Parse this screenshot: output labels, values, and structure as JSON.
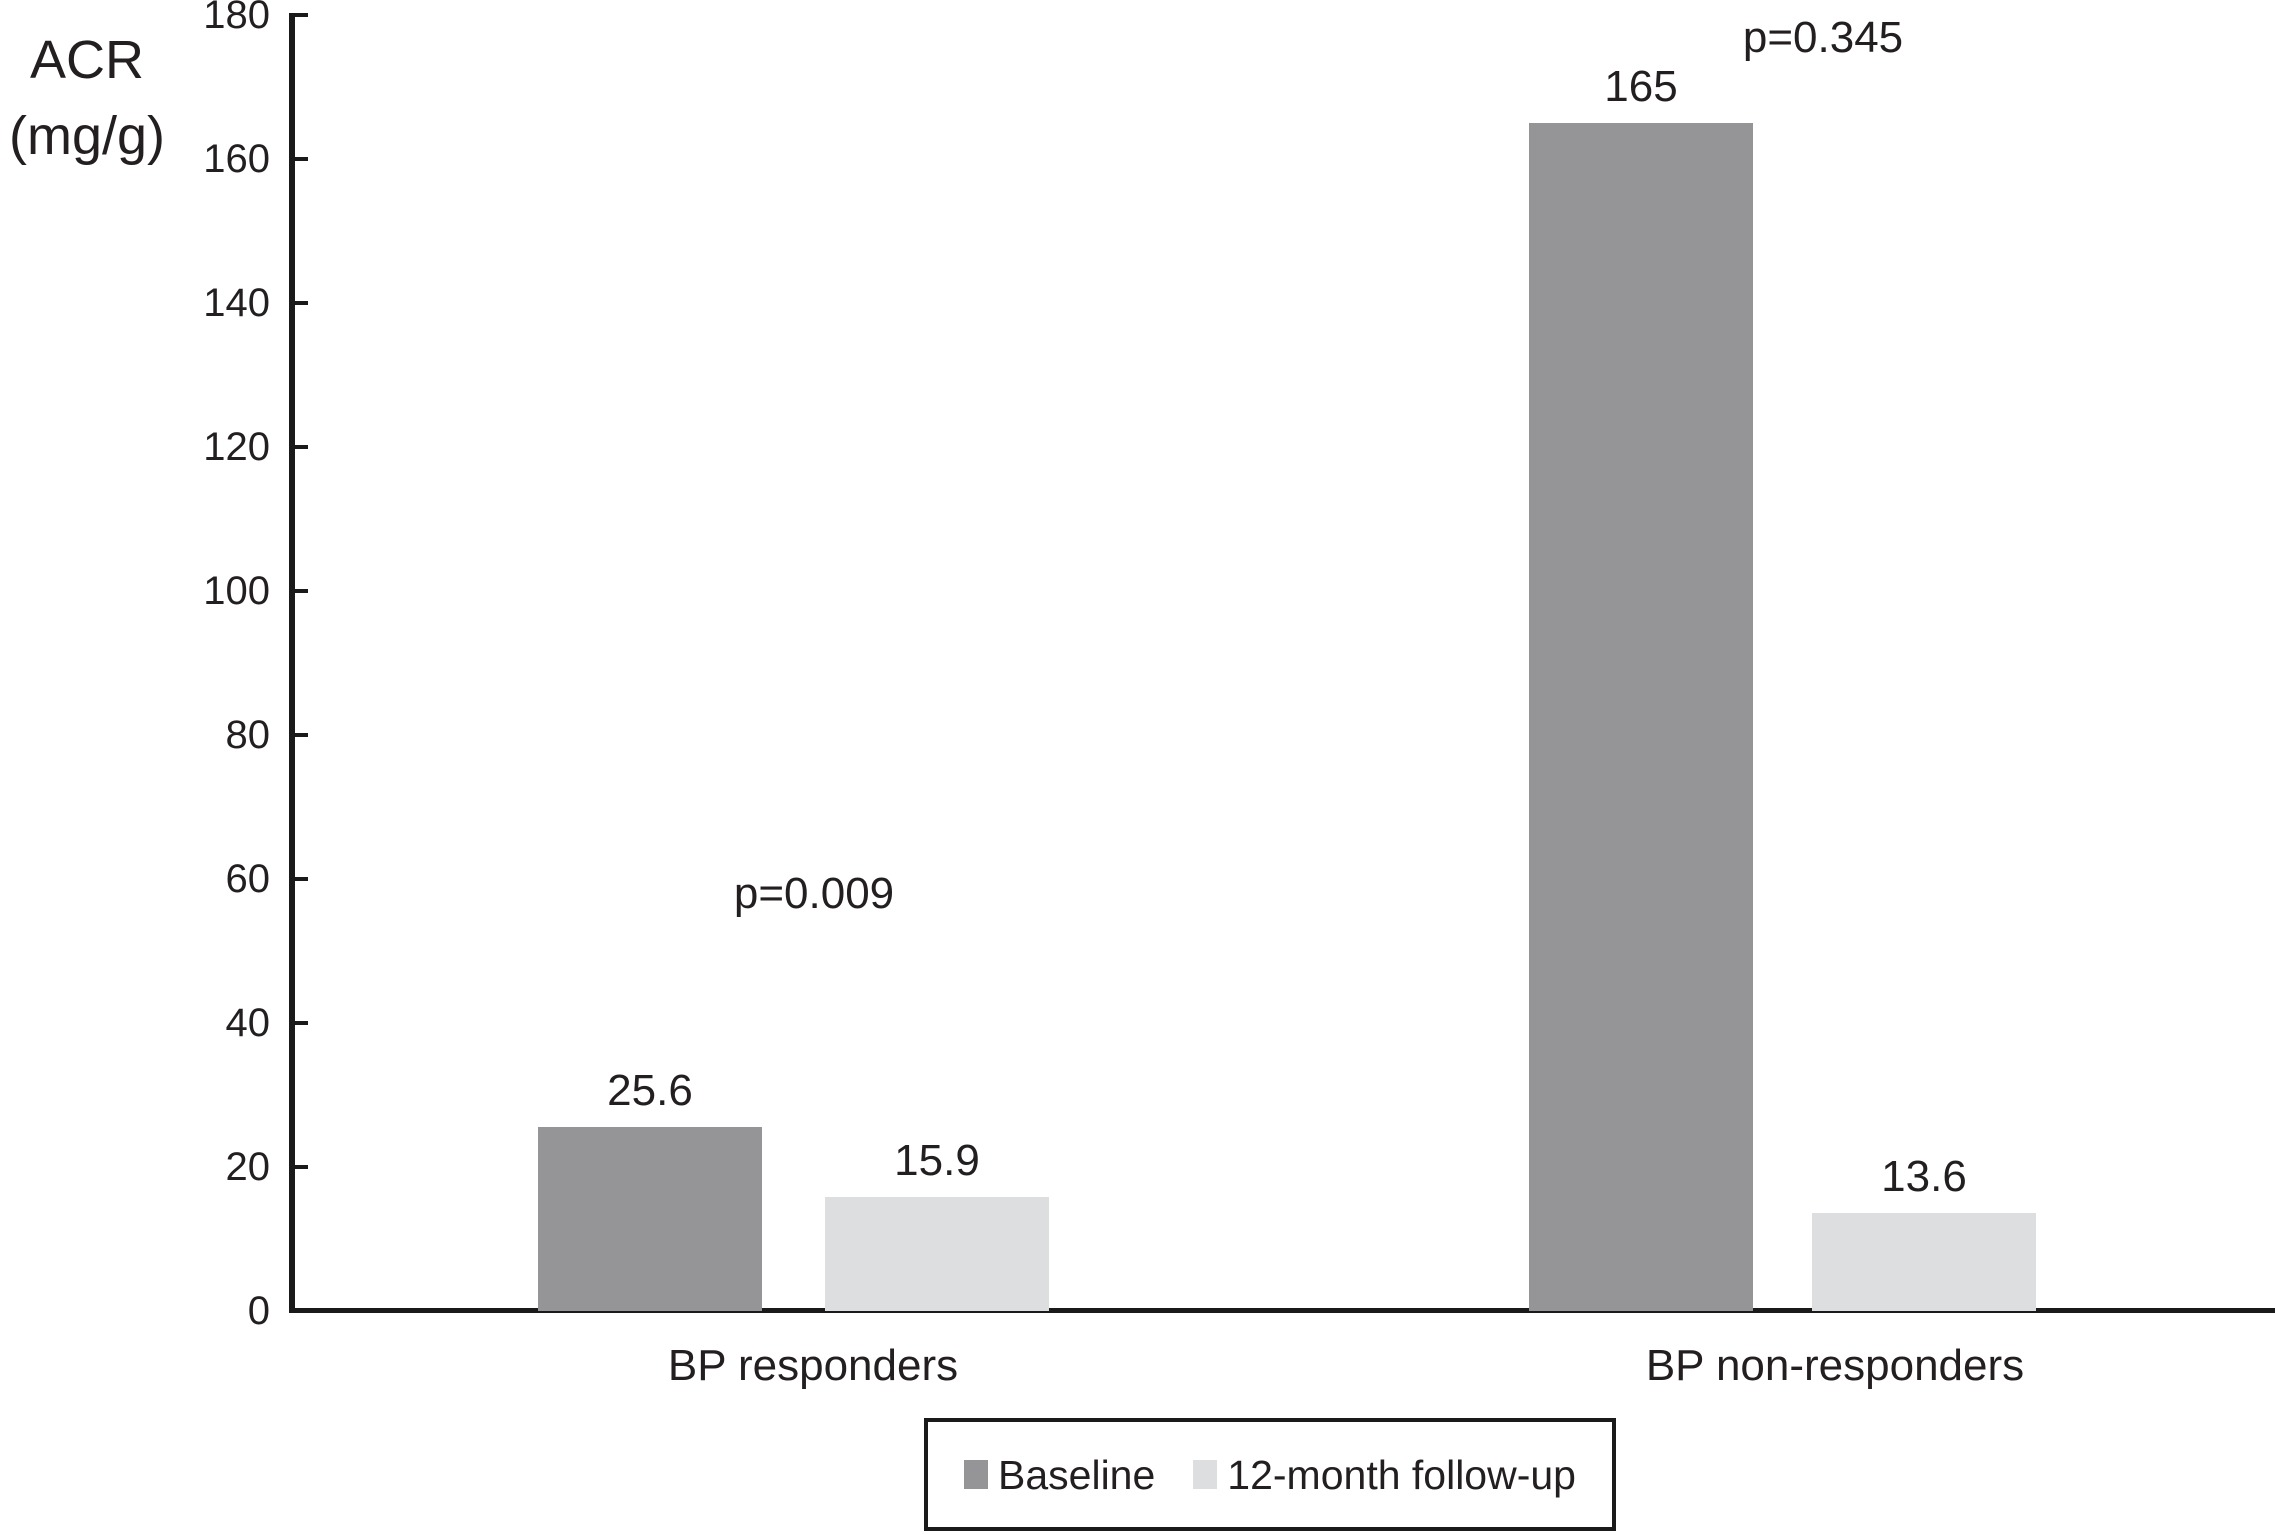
{
  "chart_data": {
    "type": "bar",
    "title": "",
    "y_axis": {
      "label_lines": [
        "ACR",
        "(mg/g)"
      ],
      "min": 0,
      "max": 180,
      "tick_step": 20,
      "tick_labels": [
        "0",
        "20",
        "40",
        "60",
        "80",
        "100",
        "120",
        "140",
        "160",
        "180"
      ]
    },
    "categories": [
      "BP responders",
      "BP non-responders"
    ],
    "series": [
      {
        "name": "Baseline",
        "color": "#959597",
        "values": [
          25.6,
          165
        ],
        "value_labels": [
          "25.6",
          "165"
        ]
      },
      {
        "name": "12-month follow-up",
        "color": "#dcdedf",
        "values": [
          15.9,
          13.6
        ],
        "value_labels": [
          "15.9",
          "13.6"
        ]
      }
    ],
    "annotations": [
      {
        "text": "p=0.009",
        "category": "BP responders"
      },
      {
        "text": "p=0.345",
        "category": "BP non-responders"
      }
    ],
    "legend": {
      "position": "bottom",
      "entries": [
        "Baseline",
        "12-month follow-up"
      ]
    },
    "grid": false,
    "axis_color": "#1a1a1a",
    "text_color": "#231f20",
    "background_color": "#ffffff"
  }
}
